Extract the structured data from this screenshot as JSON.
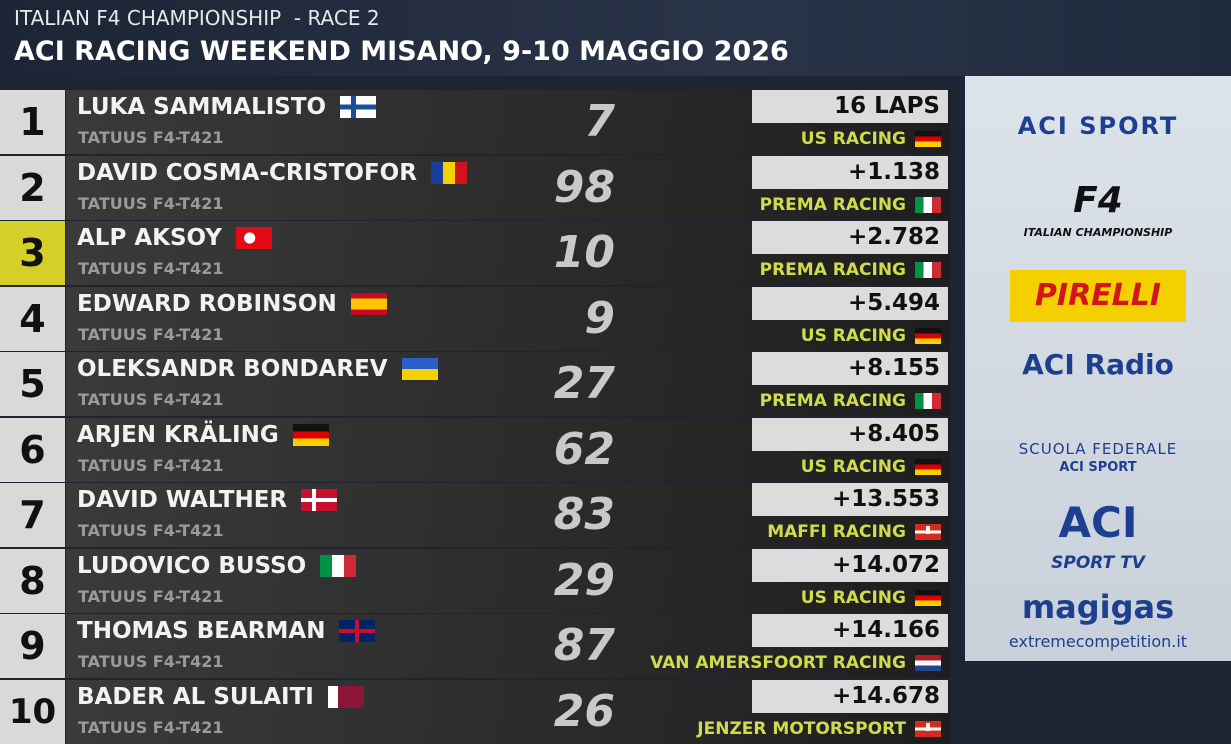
{
  "header": {
    "title": "ITALIAN F4 CHAMPIONSHIP",
    "race": "RACE 2",
    "event": "ACI RACING WEEKEND MISANO, 9-10 MAGGIO 2026"
  },
  "table": {
    "rows": [
      {
        "position": "1",
        "driver": "LUKA SAMMALISTO",
        "car": "TATUUS F4-T421",
        "number": "7",
        "gap": "16 LAPS",
        "team": "US RACING"
      },
      {
        "position": "2",
        "driver": "DAVID COSMA-CRISTOFOR",
        "car": "TATUUS F4-T421",
        "number": "98",
        "gap": "+1.138",
        "team": "PREMA RACING"
      },
      {
        "position": "3",
        "driver": "ALP AKSOY",
        "car": "TATUUS F4-T421",
        "number": "10",
        "gap": "+2.782",
        "team": "PREMA RACING"
      },
      {
        "position": "4",
        "driver": "EDWARD ROBINSON",
        "car": "TATUUS F4-T421",
        "number": "9",
        "gap": "+5.494",
        "team": "US RACING"
      },
      {
        "position": "5",
        "driver": "OLEKSANDR BONDAREV",
        "car": "TATUUS F4-T421",
        "number": "27",
        "gap": "+8.155",
        "team": "PREMA RACING"
      },
      {
        "position": "6",
        "driver": "ARJEN KRÄLING",
        "car": "TATUUS F4-T421",
        "number": "62",
        "gap": "+8.405",
        "team": "US RACING"
      },
      {
        "position": "7",
        "driver": "DAVID WALTHER",
        "car": "TATUUS F4-T421",
        "number": "83",
        "gap": "+13.553",
        "team": "MAFFI RACING"
      },
      {
        "position": "8",
        "driver": "LUDOVICO BUSSO",
        "car": "TATUUS F4-T421",
        "number": "29",
        "gap": "+14.072",
        "team": "US RACING"
      },
      {
        "position": "9",
        "driver": "THOMAS BEARMAN",
        "car": "TATUUS F4-T421",
        "number": "87",
        "gap": "+14.166",
        "team": "VAN AMERSFOORT RACING"
      },
      {
        "position": "10",
        "driver": "BADER AL SULAITI",
        "car": "TATUUS F4-T421",
        "number": "26",
        "gap": "+14.678",
        "team": "JENZER MOTORSPORT"
      }
    ]
  },
  "sponsors": [
    "ACI SPORT",
    "F4",
    "ITALIAN CHAMPIONSHIP",
    "PIRELLI",
    "ACI Radio",
    "SCUOLA FEDERALE",
    "ACI SPORT",
    "ACI",
    "SPORT TV",
    "magigas",
    "extremecompetition.it"
  ]
}
